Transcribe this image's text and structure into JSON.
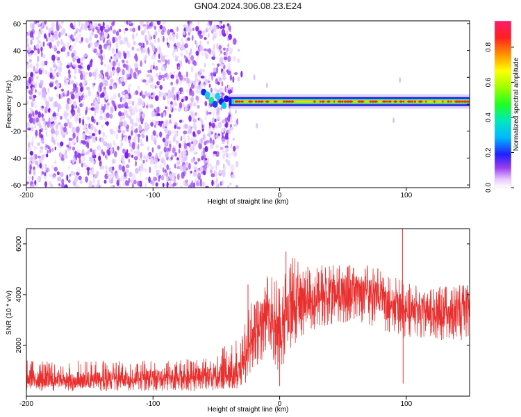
{
  "title": "GN04.2024.306.08.23.E24",
  "chart_data": [
    {
      "type": "heatmap",
      "xlabel": "Height of straight line (km)",
      "ylabel": "Frequency (Hz)",
      "xlim": [
        -200,
        150
      ],
      "ylim": [
        -62,
        62
      ],
      "xticks": [
        -200,
        -100,
        0,
        100
      ],
      "yticks": [
        -60,
        -40,
        -20,
        0,
        20,
        40,
        60
      ],
      "colorbar": {
        "label": "Normalized spectral amplitude",
        "range": [
          0,
          0.95
        ],
        "ticks": [
          0.0,
          0.2,
          0.4,
          0.6,
          0.8
        ]
      },
      "noise_region": {
        "x_from": -200,
        "x_to": -38,
        "frequency_span": [
          -62,
          62
        ],
        "dominant_color": "purple"
      },
      "signal_band": {
        "x_from": -62,
        "x_to": 150,
        "frequency_center": 2,
        "frequency_halfwidth": 3
      },
      "grid": false
    },
    {
      "type": "line",
      "xlabel": "Height of straight line (km)",
      "ylabel": "SNR (10 * v/v)",
      "xlim": [
        -200,
        150
      ],
      "ylim": [
        0,
        6600
      ],
      "xticks": [
        -200,
        -100,
        0,
        100
      ],
      "yticks": [
        2000,
        4000,
        6000
      ],
      "series_color": "#e8302f",
      "envelope": {
        "x": [
          -200,
          -150,
          -100,
          -60,
          -40,
          -30,
          -20,
          -10,
          0,
          10,
          20,
          40,
          60,
          80,
          95,
          100,
          120,
          150
        ],
        "mean": [
          600,
          650,
          700,
          800,
          900,
          1200,
          2800,
          3200,
          2700,
          3300,
          3700,
          4000,
          4200,
          3900,
          3500,
          3400,
          3300,
          3300
        ],
        "low": [
          200,
          200,
          200,
          200,
          300,
          300,
          1000,
          1600,
          900,
          2000,
          2400,
          2800,
          3000,
          2600,
          2400,
          2200,
          2200,
          2200
        ],
        "high": [
          1500,
          1400,
          1400,
          1500,
          2200,
          2300,
          4400,
          4800,
          4500,
          5600,
          5100,
          5200,
          5300,
          5000,
          4600,
          4500,
          4300,
          4400
        ]
      },
      "spikes": [
        {
          "x": -25,
          "y": 4400
        },
        {
          "x": 5,
          "y": 5700
        },
        {
          "x": 97,
          "y": 6600
        },
        {
          "x": 97.5,
          "y": 500
        },
        {
          "x": 0,
          "y": 400
        }
      ],
      "grid": false
    }
  ]
}
